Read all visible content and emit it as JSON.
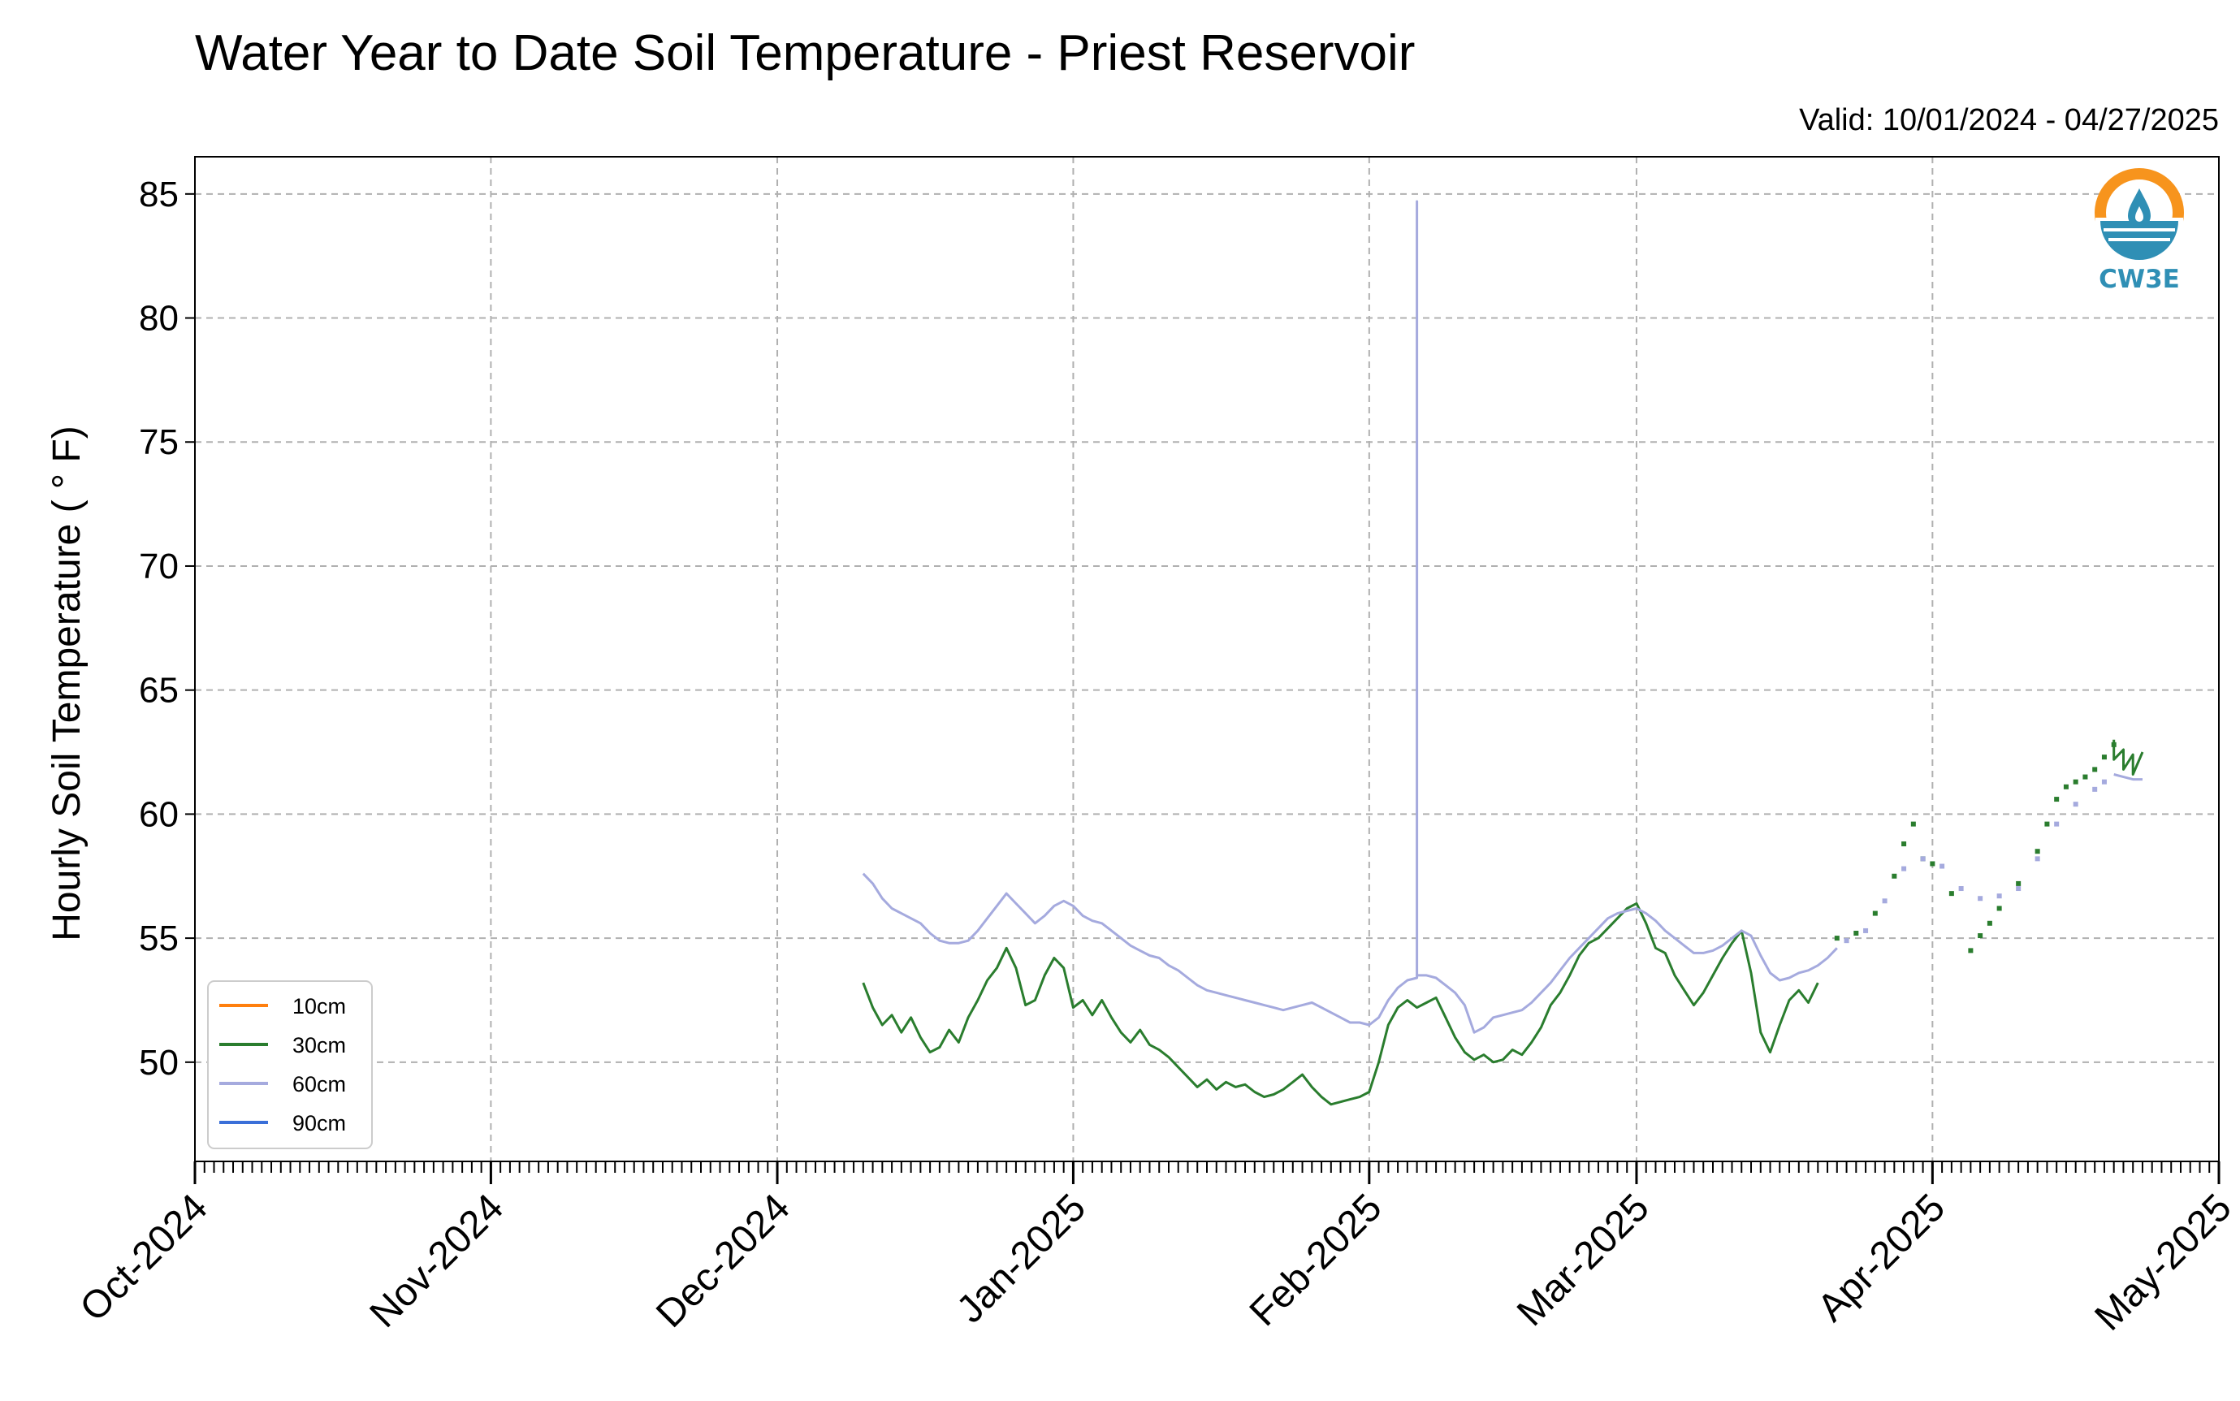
{
  "chart_data": {
    "type": "line",
    "title": "Water Year to Date Soil Temperature - Priest Reservoir",
    "subtitle": "Valid: 10/01/2024 - 04/27/2025",
    "ylabel": "Hourly Soil Temperature ( ° F)",
    "xlabel": "",
    "ylim": [
      46,
      86.5
    ],
    "yticks": [
      50,
      55,
      60,
      65,
      70,
      75,
      80,
      85
    ],
    "xlim": [
      "2024-10-01",
      "2025-05-01"
    ],
    "xticks": [
      {
        "date": "2024-10-01",
        "label": "Oct-2024"
      },
      {
        "date": "2024-11-01",
        "label": "Nov-2024"
      },
      {
        "date": "2024-12-01",
        "label": "Dec-2024"
      },
      {
        "date": "2025-01-01",
        "label": "Jan-2025"
      },
      {
        "date": "2025-02-01",
        "label": "Feb-2025"
      },
      {
        "date": "2025-03-01",
        "label": "Mar-2025"
      },
      {
        "date": "2025-04-01",
        "label": "Apr-2025"
      },
      {
        "date": "2025-05-01",
        "label": "May-2025"
      }
    ],
    "grid": true,
    "legend_position": "lower-left",
    "logo": {
      "text": "CW3E",
      "ring_color": "#f7941d",
      "accent_color": "#2f8fb5"
    },
    "series": [
      {
        "name": "10cm",
        "color": "#ff7f0e",
        "points": []
      },
      {
        "name": "30cm",
        "color": "#2a7d2e",
        "points": [
          [
            "2024-12-10",
            53.2
          ],
          [
            "2024-12-11",
            52.2
          ],
          [
            "2024-12-12",
            51.5
          ],
          [
            "2024-12-13",
            51.9
          ],
          [
            "2024-12-14",
            51.2
          ],
          [
            "2024-12-15",
            51.8
          ],
          [
            "2024-12-16",
            51.0
          ],
          [
            "2024-12-17",
            50.4
          ],
          [
            "2024-12-18",
            50.6
          ],
          [
            "2024-12-19",
            51.3
          ],
          [
            "2024-12-20",
            50.8
          ],
          [
            "2024-12-21",
            51.8
          ],
          [
            "2024-12-22",
            52.5
          ],
          [
            "2024-12-23",
            53.3
          ],
          [
            "2024-12-24",
            53.8
          ],
          [
            "2024-12-25",
            54.6
          ],
          [
            "2024-12-26",
            53.8
          ],
          [
            "2024-12-27",
            52.3
          ],
          [
            "2024-12-28",
            52.5
          ],
          [
            "2024-12-29",
            53.5
          ],
          [
            "2024-12-30",
            54.2
          ],
          [
            "2024-12-31",
            53.8
          ],
          [
            "2025-01-01",
            52.2
          ],
          [
            "2025-01-02",
            52.5
          ],
          [
            "2025-01-03",
            51.9
          ],
          [
            "2025-01-04",
            52.5
          ],
          [
            "2025-01-05",
            51.8
          ],
          [
            "2025-01-06",
            51.2
          ],
          [
            "2025-01-07",
            50.8
          ],
          [
            "2025-01-08",
            51.3
          ],
          [
            "2025-01-09",
            50.7
          ],
          [
            "2025-01-10",
            50.5
          ],
          [
            "2025-01-11",
            50.2
          ],
          [
            "2025-01-12",
            49.8
          ],
          [
            "2025-01-13",
            49.4
          ],
          [
            "2025-01-14",
            49.0
          ],
          [
            "2025-01-15",
            49.3
          ],
          [
            "2025-01-16",
            48.9
          ],
          [
            "2025-01-17",
            49.2
          ],
          [
            "2025-01-18",
            49.0
          ],
          [
            "2025-01-19",
            49.1
          ],
          [
            "2025-01-20",
            48.8
          ],
          [
            "2025-01-21",
            48.6
          ],
          [
            "2025-01-22",
            48.7
          ],
          [
            "2025-01-23",
            48.9
          ],
          [
            "2025-01-24",
            49.2
          ],
          [
            "2025-01-25",
            49.5
          ],
          [
            "2025-01-26",
            49.0
          ],
          [
            "2025-01-27",
            48.6
          ],
          [
            "2025-01-28",
            48.3
          ],
          [
            "2025-01-29",
            48.4
          ],
          [
            "2025-01-30",
            48.5
          ],
          [
            "2025-01-31",
            48.6
          ],
          [
            "2025-02-01",
            48.8
          ],
          [
            "2025-02-02",
            50.0
          ],
          [
            "2025-02-03",
            51.5
          ],
          [
            "2025-02-04",
            52.2
          ],
          [
            "2025-02-05",
            52.5
          ],
          [
            "2025-02-06",
            52.2
          ],
          [
            "2025-02-07",
            52.4
          ],
          [
            "2025-02-08",
            52.6
          ],
          [
            "2025-02-09",
            51.8
          ],
          [
            "2025-02-10",
            51.0
          ],
          [
            "2025-02-11",
            50.4
          ],
          [
            "2025-02-12",
            50.1
          ],
          [
            "2025-02-13",
            50.3
          ],
          [
            "2025-02-14",
            50.0
          ],
          [
            "2025-02-15",
            50.1
          ],
          [
            "2025-02-16",
            50.5
          ],
          [
            "2025-02-17",
            50.3
          ],
          [
            "2025-02-18",
            50.8
          ],
          [
            "2025-02-19",
            51.4
          ],
          [
            "2025-02-20",
            52.3
          ],
          [
            "2025-02-21",
            52.8
          ],
          [
            "2025-02-22",
            53.5
          ],
          [
            "2025-02-23",
            54.3
          ],
          [
            "2025-02-24",
            54.8
          ],
          [
            "2025-02-25",
            55.0
          ],
          [
            "2025-02-26",
            55.4
          ],
          [
            "2025-02-27",
            55.8
          ],
          [
            "2025-02-28",
            56.2
          ],
          [
            "2025-03-01",
            56.4
          ],
          [
            "2025-03-02",
            55.6
          ],
          [
            "2025-03-03",
            54.6
          ],
          [
            "2025-03-04",
            54.4
          ],
          [
            "2025-03-05",
            53.5
          ],
          [
            "2025-03-06",
            52.9
          ],
          [
            "2025-03-07",
            52.3
          ],
          [
            "2025-03-08",
            52.8
          ],
          [
            "2025-03-09",
            53.5
          ],
          [
            "2025-03-10",
            54.2
          ],
          [
            "2025-03-11",
            54.8
          ],
          [
            "2025-03-12",
            55.3
          ],
          [
            "2025-03-13",
            53.6
          ],
          [
            "2025-03-14",
            51.2
          ],
          [
            "2025-03-15",
            50.4
          ],
          [
            "2025-03-16",
            51.5
          ],
          [
            "2025-03-17",
            52.5
          ],
          [
            "2025-03-18",
            52.9
          ],
          [
            "2025-03-19",
            52.4
          ],
          [
            "2025-03-20",
            53.2
          ]
        ]
      },
      {
        "name": "60cm",
        "color": "#a5aade",
        "points": [
          [
            "2024-12-10",
            57.6
          ],
          [
            "2024-12-11",
            57.2
          ],
          [
            "2024-12-12",
            56.6
          ],
          [
            "2024-12-13",
            56.2
          ],
          [
            "2024-12-14",
            56.0
          ],
          [
            "2024-12-15",
            55.8
          ],
          [
            "2024-12-16",
            55.6
          ],
          [
            "2024-12-17",
            55.2
          ],
          [
            "2024-12-18",
            54.9
          ],
          [
            "2024-12-19",
            54.8
          ],
          [
            "2024-12-20",
            54.8
          ],
          [
            "2024-12-21",
            54.9
          ],
          [
            "2024-12-22",
            55.3
          ],
          [
            "2024-12-23",
            55.8
          ],
          [
            "2024-12-24",
            56.3
          ],
          [
            "2024-12-25",
            56.8
          ],
          [
            "2024-12-26",
            56.4
          ],
          [
            "2024-12-27",
            56.0
          ],
          [
            "2024-12-28",
            55.6
          ],
          [
            "2024-12-29",
            55.9
          ],
          [
            "2024-12-30",
            56.3
          ],
          [
            "2024-12-31",
            56.5
          ],
          [
            "2025-01-01",
            56.3
          ],
          [
            "2025-01-02",
            55.9
          ],
          [
            "2025-01-03",
            55.7
          ],
          [
            "2025-01-04",
            55.6
          ],
          [
            "2025-01-05",
            55.3
          ],
          [
            "2025-01-06",
            55.0
          ],
          [
            "2025-01-07",
            54.7
          ],
          [
            "2025-01-08",
            54.5
          ],
          [
            "2025-01-09",
            54.3
          ],
          [
            "2025-01-10",
            54.2
          ],
          [
            "2025-01-11",
            53.9
          ],
          [
            "2025-01-12",
            53.7
          ],
          [
            "2025-01-13",
            53.4
          ],
          [
            "2025-01-14",
            53.1
          ],
          [
            "2025-01-15",
            52.9
          ],
          [
            "2025-01-16",
            52.8
          ],
          [
            "2025-01-17",
            52.7
          ],
          [
            "2025-01-18",
            52.6
          ],
          [
            "2025-01-19",
            52.5
          ],
          [
            "2025-01-20",
            52.4
          ],
          [
            "2025-01-21",
            52.3
          ],
          [
            "2025-01-22",
            52.2
          ],
          [
            "2025-01-23",
            52.1
          ],
          [
            "2025-01-24",
            52.2
          ],
          [
            "2025-01-25",
            52.3
          ],
          [
            "2025-01-26",
            52.4
          ],
          [
            "2025-01-27",
            52.2
          ],
          [
            "2025-01-28",
            52.0
          ],
          [
            "2025-01-29",
            51.8
          ],
          [
            "2025-01-30",
            51.6
          ],
          [
            "2025-01-31",
            51.6
          ],
          [
            "2025-02-01",
            51.5
          ],
          [
            "2025-02-02",
            51.8
          ],
          [
            "2025-02-03",
            52.5
          ],
          [
            "2025-02-04",
            53.0
          ],
          [
            "2025-02-05",
            53.3
          ],
          [
            "2025-02-06",
            53.4
          ],
          [
            "2025-02-06",
            84.7
          ],
          [
            "2025-02-06",
            53.5
          ],
          [
            "2025-02-07",
            53.5
          ],
          [
            "2025-02-08",
            53.4
          ],
          [
            "2025-02-09",
            53.1
          ],
          [
            "2025-02-10",
            52.8
          ],
          [
            "2025-02-11",
            52.3
          ],
          [
            "2025-02-12",
            51.2
          ],
          [
            "2025-02-13",
            51.4
          ],
          [
            "2025-02-14",
            51.8
          ],
          [
            "2025-02-15",
            51.9
          ],
          [
            "2025-02-16",
            52.0
          ],
          [
            "2025-02-17",
            52.1
          ],
          [
            "2025-02-18",
            52.4
          ],
          [
            "2025-02-19",
            52.8
          ],
          [
            "2025-02-20",
            53.2
          ],
          [
            "2025-02-21",
            53.7
          ],
          [
            "2025-02-22",
            54.2
          ],
          [
            "2025-02-23",
            54.6
          ],
          [
            "2025-02-24",
            55.0
          ],
          [
            "2025-02-25",
            55.4
          ],
          [
            "2025-02-26",
            55.8
          ],
          [
            "2025-02-27",
            56.0
          ],
          [
            "2025-02-28",
            56.1
          ],
          [
            "2025-03-01",
            56.2
          ],
          [
            "2025-03-02",
            56.0
          ],
          [
            "2025-03-03",
            55.7
          ],
          [
            "2025-03-04",
            55.3
          ],
          [
            "2025-03-05",
            55.0
          ],
          [
            "2025-03-06",
            54.7
          ],
          [
            "2025-03-07",
            54.4
          ],
          [
            "2025-03-08",
            54.4
          ],
          [
            "2025-03-09",
            54.5
          ],
          [
            "2025-03-10",
            54.7
          ],
          [
            "2025-03-11",
            55.0
          ],
          [
            "2025-03-12",
            55.3
          ],
          [
            "2025-03-13",
            55.1
          ],
          [
            "2025-03-14",
            54.3
          ],
          [
            "2025-03-15",
            53.6
          ],
          [
            "2025-03-16",
            53.3
          ],
          [
            "2025-03-17",
            53.4
          ],
          [
            "2025-03-18",
            53.6
          ],
          [
            "2025-03-19",
            53.7
          ],
          [
            "2025-03-20",
            53.9
          ],
          [
            "2025-03-21",
            54.2
          ],
          [
            "2025-03-22",
            54.6
          ]
        ]
      },
      {
        "name": "90cm",
        "color": "#3a6fd8",
        "points": []
      }
    ],
    "sparse_series": [
      {
        "name": "30cm",
        "color": "#2a7d2e",
        "points": [
          [
            "2025-03-22",
            55.0
          ],
          [
            "2025-03-24",
            55.2
          ],
          [
            "2025-03-26",
            56.0
          ],
          [
            "2025-03-28",
            57.5
          ],
          [
            "2025-03-29",
            58.8
          ],
          [
            "2025-03-30",
            59.6
          ],
          [
            "2025-03-31",
            58.2
          ],
          [
            "2025-04-01",
            58.0
          ],
          [
            "2025-04-03",
            56.8
          ],
          [
            "2025-04-05",
            54.5
          ],
          [
            "2025-04-06",
            55.1
          ],
          [
            "2025-04-07",
            55.6
          ],
          [
            "2025-04-08",
            56.2
          ],
          [
            "2025-04-10",
            57.2
          ],
          [
            "2025-04-12",
            58.5
          ],
          [
            "2025-04-13",
            59.6
          ],
          [
            "2025-04-14",
            60.6
          ],
          [
            "2025-04-15",
            61.1
          ],
          [
            "2025-04-16",
            61.3
          ],
          [
            "2025-04-17",
            61.5
          ],
          [
            "2025-04-18",
            61.8
          ],
          [
            "2025-04-19",
            62.3
          ],
          [
            "2025-04-20",
            62.8
          ]
        ]
      },
      {
        "name": "60cm",
        "color": "#a5aade",
        "points": [
          [
            "2025-03-23",
            54.9
          ],
          [
            "2025-03-25",
            55.3
          ],
          [
            "2025-03-27",
            56.5
          ],
          [
            "2025-03-29",
            57.8
          ],
          [
            "2025-03-31",
            58.2
          ],
          [
            "2025-04-02",
            57.9
          ],
          [
            "2025-04-04",
            57.0
          ],
          [
            "2025-04-06",
            56.6
          ],
          [
            "2025-04-08",
            56.7
          ],
          [
            "2025-04-10",
            57.0
          ],
          [
            "2025-04-12",
            58.2
          ],
          [
            "2025-04-14",
            59.6
          ],
          [
            "2025-04-16",
            60.4
          ],
          [
            "2025-04-18",
            61.0
          ],
          [
            "2025-04-19",
            61.3
          ]
        ]
      }
    ],
    "tail_series": [
      {
        "name": "30cm",
        "color": "#2a7d2e",
        "points": [
          [
            "2025-04-20",
            63.0
          ],
          [
            "2025-04-20",
            62.2
          ],
          [
            "2025-04-21",
            62.6
          ],
          [
            "2025-04-21",
            61.8
          ],
          [
            "2025-04-22",
            62.4
          ],
          [
            "2025-04-22",
            61.6
          ],
          [
            "2025-04-23",
            62.5
          ]
        ]
      },
      {
        "name": "60cm",
        "color": "#a5aade",
        "points": [
          [
            "2025-04-20",
            61.6
          ],
          [
            "2025-04-21",
            61.5
          ],
          [
            "2025-04-22",
            61.4
          ],
          [
            "2025-04-23",
            61.4
          ]
        ]
      }
    ]
  }
}
